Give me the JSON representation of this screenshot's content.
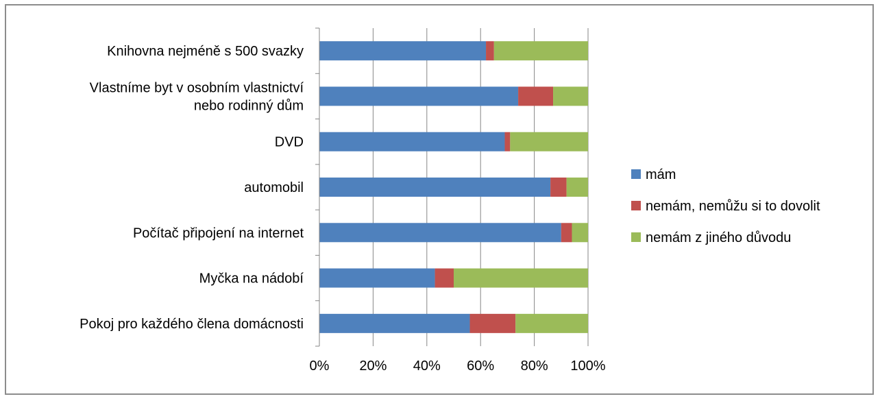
{
  "chart_data": {
    "type": "bar",
    "orientation": "horizontal",
    "stacked": "percent",
    "categories": [
      [
        "Knihovna nejméně s 500 svazky"
      ],
      [
        "Vlastníme byt v osobním vlastnictví",
        "nebo rodinný dům"
      ],
      [
        "DVD"
      ],
      [
        "automobil"
      ],
      [
        "Počítač připojení na internet"
      ],
      [
        "Myčka na nádobí"
      ],
      [
        "Pokoj pro každého člena domácnosti"
      ]
    ],
    "series": [
      {
        "name": "mám",
        "color": "#4f81bd",
        "values": [
          62,
          74,
          69,
          86,
          90,
          43,
          56
        ]
      },
      {
        "name": "nemám, nemůžu si to dovolit",
        "color": "#c0504d",
        "values": [
          3,
          13,
          2,
          6,
          4,
          7,
          17
        ]
      },
      {
        "name": "nemám z jiného důvodu",
        "color": "#9bbb59",
        "values": [
          35,
          13,
          29,
          8,
          6,
          50,
          27
        ]
      }
    ],
    "x_ticks": [
      "0%",
      "20%",
      "40%",
      "60%",
      "80%",
      "100%"
    ],
    "xlim": [
      0,
      100
    ],
    "grid": true,
    "legend": "right",
    "title": "",
    "xlabel": "",
    "ylabel": ""
  }
}
